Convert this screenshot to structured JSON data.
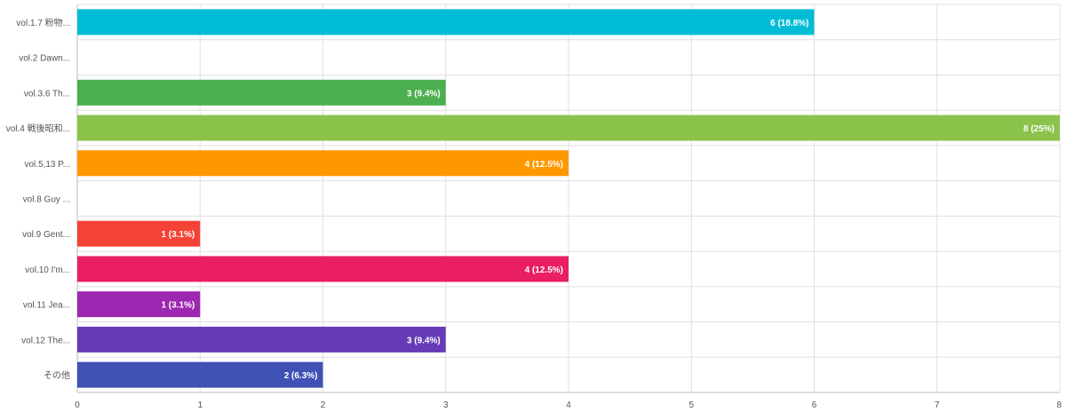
{
  "chart_data": {
    "type": "bar",
    "orientation": "horizontal",
    "categories": [
      "vol.1.7 粉物...",
      "vol.2 Dawn...",
      "vol.3.6 Th...",
      "vol.4 戦後昭和...",
      "vol.5,13 P...",
      "vol.8 Guy ...",
      "vol.9 Gent...",
      "vol.10 I'm...",
      "vol.11 Jea...",
      "vol.12 The...",
      "その他"
    ],
    "values": [
      6,
      0,
      3,
      8,
      4,
      0,
      1,
      4,
      1,
      3,
      2
    ],
    "data_labels": [
      "6 (18.8%)",
      "",
      "3 (9.4%)",
      "8 (25%)",
      "4 (12.5%)",
      "",
      "1 (3.1%)",
      "4 (12.5%)",
      "1 (3.1%)",
      "3 (9.4%)",
      "2 (6.3%)"
    ],
    "colors": [
      "#00bcd4",
      "#03a9f4",
      "#4caf50",
      "#8bc34a",
      "#ff9800",
      "#ffc107",
      "#f44336",
      "#e91e63",
      "#9c27b0",
      "#673ab7",
      "#3f51b5"
    ],
    "x_ticks": [
      "0",
      "1",
      "2",
      "3",
      "4",
      "5",
      "6",
      "7",
      "8"
    ],
    "xlim": [
      0,
      8
    ],
    "grid": true,
    "legend": "none",
    "title": "",
    "xlabel": "",
    "ylabel": ""
  }
}
